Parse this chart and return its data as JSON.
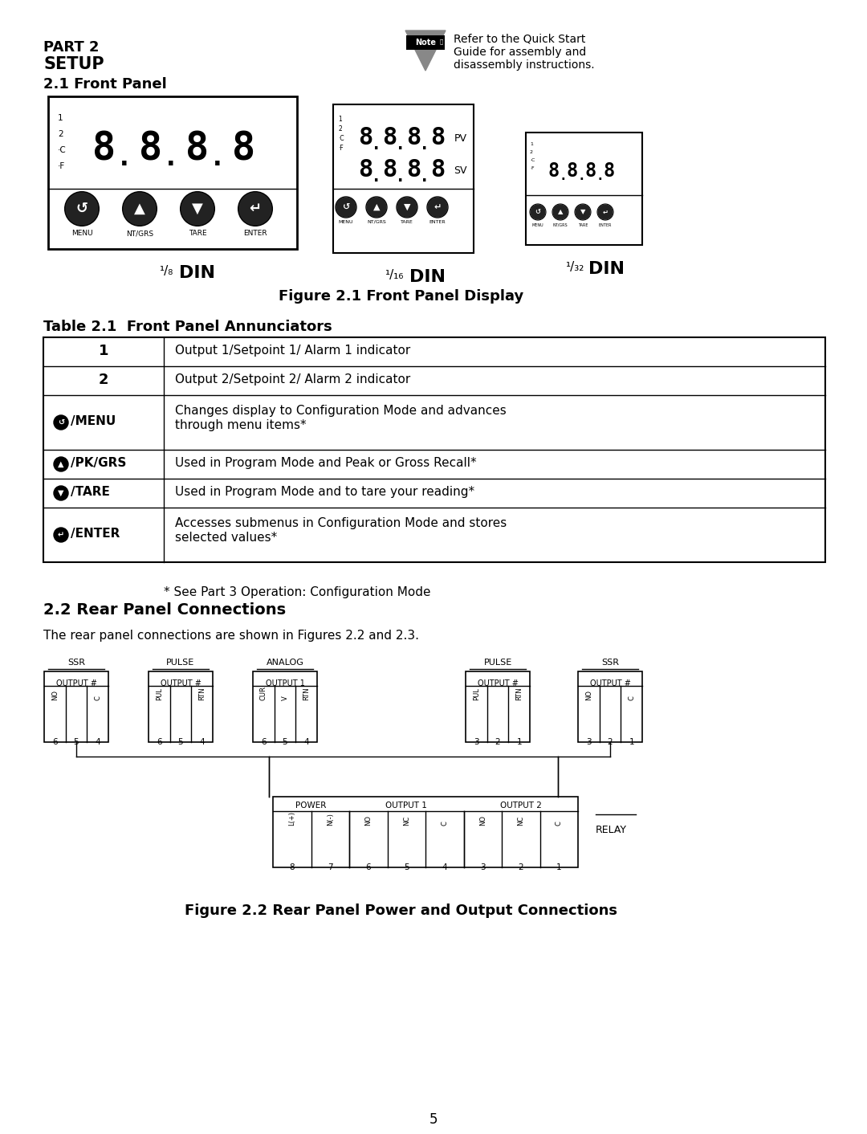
{
  "bg_color": "#ffffff",
  "page_number": "5",
  "header_part": "PART 2",
  "header_setup": "SETUP",
  "header_section": "2.1 Front Panel",
  "note_line1": "Refer to the Quick Start",
  "note_line2": "Guide for assembly and",
  "note_line3": "disassembly instructions.",
  "fig1_caption": "Figure 2.1 Front Panel Display",
  "din1": "DIN",
  "din2": "DIN",
  "din3": "DIN",
  "table_title": "Table 2.1  Front Panel Annunciators",
  "row1_col1": "1",
  "row1_col2": "Output 1/Setpoint 1/ Alarm 1 indicator",
  "row2_col1": "2",
  "row2_col2": "Output 2/Setpoint 2/ Alarm 2 indicator",
  "row3_col1": "⊗/MENU",
  "row3_col2a": "Changes display to Configuration Mode and advances",
  "row3_col2b": "through menu items*",
  "row4_col1": "☁/PK/GRS",
  "row4_col2": "Used in Program Mode and Peak or Gross Recall*",
  "row5_col1": "☁/TARE",
  "row5_col2": "Used in Program Mode and to tare your reading*",
  "row6_col1": "☁/ENTER",
  "row6_col2a": "Accesses submenus in Configuration Mode and stores",
  "row6_col2b": "selected values*",
  "footnote": "* See Part 3 Operation: Configuration Mode",
  "section2_title": "2.2 Rear Panel Connections",
  "rear_panel_text": "The rear panel connections are shown in Figures 2.2 and 2.3.",
  "fig2_caption": "Figure 2.2 Rear Panel Power and Output Connections"
}
